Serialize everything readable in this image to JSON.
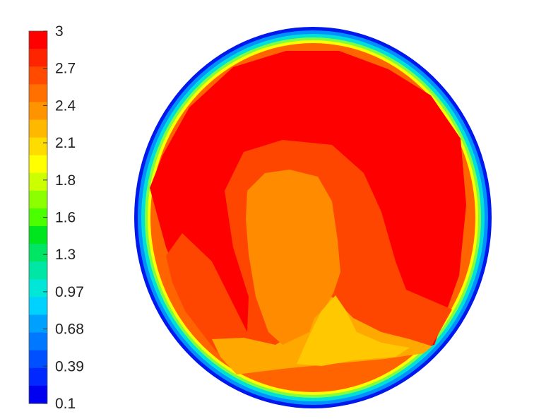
{
  "chart_data": {
    "type": "heatmap",
    "title": "",
    "colorbar": {
      "position": "left",
      "range": [
        0.1,
        3
      ],
      "ticks": [
        "3",
        "2.7",
        "2.4",
        "2.1",
        "1.8",
        "1.6",
        "1.3",
        "0.97",
        "0.68",
        "0.39",
        "0.1"
      ],
      "bands": [
        "#ff0000",
        "#ff2400",
        "#ff4a00",
        "#ff7000",
        "#ff9400",
        "#ffb800",
        "#ffdc00",
        "#ffff00",
        "#ccff00",
        "#8cff00",
        "#4cff00",
        "#00e61e",
        "#00e664",
        "#00e6a5",
        "#00e6d7",
        "#00d2ff",
        "#00a0ff",
        "#0078ff",
        "#0050ff",
        "#0028ff",
        "#0000f0"
      ]
    },
    "field": {
      "shape": "circle",
      "outer_value": 0.1,
      "rim_ring_values": [
        0.1,
        0.68,
        1.3,
        1.8,
        2.4,
        2.7
      ],
      "regions": [
        {
          "name": "outer-red-zone",
          "value": 3,
          "color": "#ff0000"
        },
        {
          "name": "mid-orange-band",
          "value": 2.7,
          "color": "#ff4600"
        },
        {
          "name": "inner-orange-core",
          "value": 2.4,
          "color": "#ff8c00"
        },
        {
          "name": "lower-amber-zone",
          "value": 2.3,
          "color": "#ffa800"
        },
        {
          "name": "lower-yellow-patch",
          "value": 2.1,
          "color": "#ffc800"
        }
      ]
    }
  }
}
